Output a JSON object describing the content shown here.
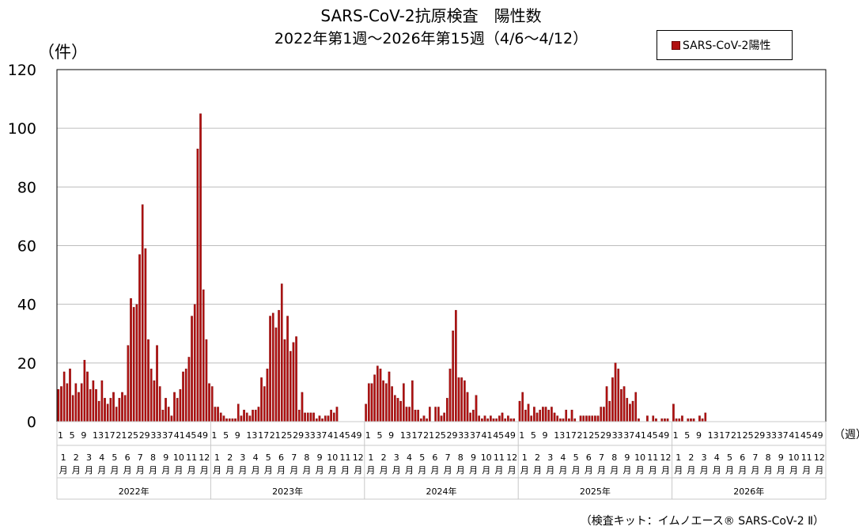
{
  "chart_data": {
    "type": "bar",
    "title": "SARS-CoV-2抗原検査　陽性数",
    "subtitle": "2022年第1週～2026年第15週（4/6～4/12）",
    "ylabel": "（件）",
    "xlabel": "（週）",
    "ylim": [
      0,
      120
    ],
    "yticks": [
      0,
      20,
      40,
      60,
      80,
      100,
      120
    ],
    "grid": true,
    "legend_position": "top-right",
    "bar_color": "#b01010",
    "footnote": "（検査キット：イムノエース® SARS-CoV-2 Ⅱ）",
    "week_tick_labels": [
      "1",
      "5",
      "9",
      "13",
      "17",
      "21",
      "25",
      "29",
      "33",
      "37",
      "41",
      "45",
      "49"
    ],
    "month_labels": [
      "1",
      "2",
      "3",
      "4",
      "5",
      "6",
      "7",
      "8",
      "9",
      "10",
      "11",
      "12"
    ],
    "month_suffix": "月",
    "years": [
      "2022年",
      "2023年",
      "2024年",
      "2025年",
      "2026年"
    ],
    "series": [
      {
        "name": "SARS-CoV-2陽性",
        "values": [
          [
            11,
            12,
            17,
            13,
            18,
            9,
            13,
            10,
            13,
            21,
            17,
            11,
            14,
            11,
            7,
            14,
            8,
            6,
            8,
            10,
            5,
            8,
            10,
            9,
            26,
            42,
            39,
            40,
            57,
            74,
            59,
            28,
            18,
            14,
            26,
            12,
            4,
            8,
            5,
            2,
            10,
            8,
            11,
            17,
            18,
            22,
            36,
            40,
            93,
            105,
            45,
            28,
            13,
            12,
            5,
            5,
            1,
            0
          ],
          [
            0,
            0,
            0,
            3,
            2,
            1,
            1,
            1,
            1,
            6,
            2,
            4,
            3,
            2,
            4,
            4,
            5,
            15,
            12,
            18,
            36,
            37,
            32,
            38,
            47,
            28,
            36,
            24,
            27,
            29,
            4,
            10,
            3,
            3,
            3,
            3,
            1,
            2,
            1,
            2,
            2,
            4,
            3,
            5
          ],
          [
            6,
            13,
            13,
            16,
            19,
            18,
            14,
            13,
            17,
            12,
            9,
            8,
            7,
            13,
            5,
            5,
            14,
            4,
            4,
            1,
            2,
            1,
            5,
            0,
            5,
            5,
            2,
            3,
            8,
            18,
            31,
            38,
            15,
            15,
            14,
            10,
            3,
            4,
            9,
            2,
            1,
            2,
            1,
            2,
            1,
            1,
            2,
            3,
            1,
            2,
            1,
            1
          ],
          [
            7,
            10,
            4,
            6,
            2,
            5,
            3,
            4,
            5,
            5,
            4,
            5,
            3,
            2,
            1,
            1,
            4,
            1,
            4,
            1,
            0,
            2,
            2,
            2,
            2,
            2,
            2,
            2,
            5,
            5,
            12,
            7,
            15,
            20,
            18,
            11,
            12,
            8,
            6,
            7,
            10,
            1,
            0,
            0,
            2,
            0,
            2,
            1,
            0,
            1,
            1,
            1
          ],
          [
            6,
            1,
            1,
            2,
            0,
            1,
            1,
            1,
            0,
            2,
            1,
            3
          ]
        ]
      }
    ]
  }
}
